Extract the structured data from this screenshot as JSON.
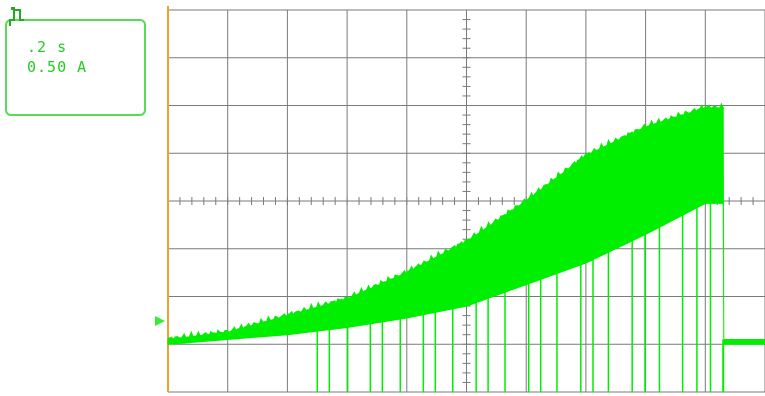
{
  "settings": {
    "time_per_div": ".2 s",
    "current_per_div": "0.50 A"
  },
  "colors": {
    "trace": "#00ee00",
    "grid": "#7a7a7a",
    "ground_marker": "#33ee33",
    "trigger_edge": "#f0a030",
    "box_border": "#55dd55",
    "text": "#22cc22"
  },
  "icons": {
    "channel": "channel-indicator-icon",
    "ground": "ground-level-marker-icon"
  },
  "chart_data": {
    "type": "line",
    "title": "",
    "xlabel": "",
    "ylabel": "",
    "x_divisions": 10,
    "y_divisions": 8,
    "x_range_div": [
      0,
      10
    ],
    "y_range_div": [
      -1,
      7
    ],
    "grid": true,
    "legend": "none",
    "trace": {
      "time_div": [
        0,
        1,
        2,
        3,
        4,
        5,
        6,
        7,
        8,
        9,
        9.3,
        9.31,
        10
      ],
      "upper_div": [
        0.1,
        0.25,
        0.6,
        0.95,
        1.5,
        2.15,
        3.0,
        3.95,
        4.55,
        4.95,
        4.95,
        0.1,
        0.1
      ],
      "lower_div": [
        0.0,
        0.1,
        0.2,
        0.35,
        0.55,
        0.8,
        1.25,
        1.7,
        2.3,
        2.95,
        2.95,
        0.0,
        0.0
      ]
    }
  }
}
